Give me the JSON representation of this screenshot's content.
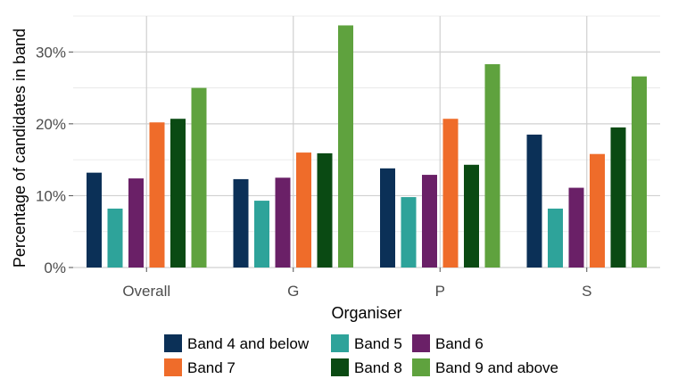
{
  "chart_data": {
    "type": "bar",
    "title": "",
    "xlabel": "Organiser",
    "ylabel": "Percentage of candidates in band",
    "ylim": [
      0,
      35
    ],
    "yticks": [
      0,
      10,
      20,
      30
    ],
    "ytick_labels": [
      "0%",
      "10%",
      "20%",
      "30%"
    ],
    "grid": true,
    "legend_position": "bottom",
    "categories": [
      "Overall",
      "G",
      "P",
      "S"
    ],
    "series": [
      {
        "name": "Band 4 and below",
        "color": "#0b3057",
        "values": [
          13.2,
          12.3,
          13.8,
          18.5
        ]
      },
      {
        "name": "Band 5",
        "color": "#2ea39a",
        "values": [
          8.2,
          9.3,
          9.8,
          8.2
        ]
      },
      {
        "name": "Band 6",
        "color": "#6a2067",
        "values": [
          12.4,
          12.5,
          12.9,
          11.1
        ]
      },
      {
        "name": "Band 7",
        "color": "#ef6c2a",
        "values": [
          20.2,
          16.0,
          20.7,
          15.8
        ]
      },
      {
        "name": "Band 8",
        "color": "#0a4a13",
        "values": [
          20.7,
          15.9,
          14.3,
          19.5
        ]
      },
      {
        "name": "Band 9 and above",
        "color": "#5fa23e",
        "values": [
          25.0,
          33.7,
          28.3,
          26.6
        ]
      }
    ]
  }
}
